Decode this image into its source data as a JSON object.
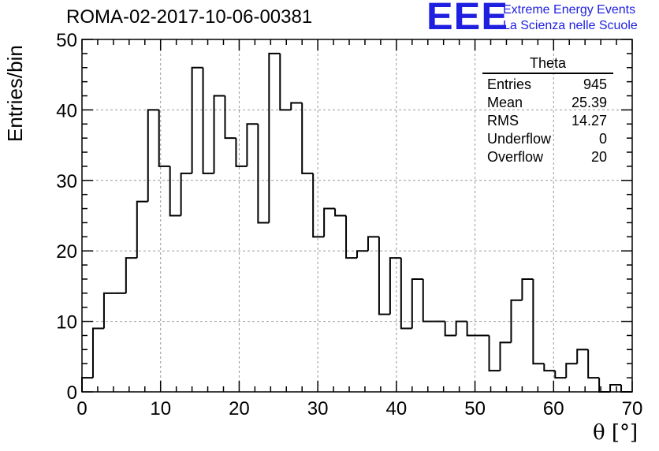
{
  "title": "ROMA-02-2017-10-06-00381",
  "logo": {
    "mark": "EEE",
    "line1": "Extreme Energy Events",
    "line2": "La Scienza nelle Scuole",
    "color": "#1f1fe0"
  },
  "stats": {
    "title": "Theta",
    "rows": [
      {
        "label": "Entries",
        "value": "945"
      },
      {
        "label": "Mean",
        "value": "25.39"
      },
      {
        "label": "RMS",
        "value": "14.27"
      },
      {
        "label": "Underflow",
        "value": "0"
      },
      {
        "label": "Overflow",
        "value": "20"
      }
    ]
  },
  "chart_data": {
    "type": "histogram",
    "xlabel": "θ [°]",
    "ylabel": "Entries/bin",
    "xlim": [
      0,
      70
    ],
    "ylim": [
      0,
      50
    ],
    "x_ticks": [
      0,
      10,
      20,
      30,
      40,
      50,
      60,
      70
    ],
    "y_ticks": [
      0,
      10,
      20,
      30,
      40,
      50
    ],
    "grid": true,
    "bin_width": 1.4,
    "bin_edges_start": 0,
    "values": [
      2,
      9,
      14,
      14,
      19,
      27,
      40,
      32,
      25,
      31,
      46,
      31,
      42,
      36,
      32,
      38,
      24,
      48,
      40,
      41,
      31,
      22,
      26,
      25,
      19,
      20,
      22,
      11,
      19,
      9,
      16,
      10,
      10,
      8,
      10,
      8,
      8,
      3,
      7,
      13,
      16,
      4,
      3,
      2,
      4,
      6,
      2,
      0,
      1,
      0
    ]
  }
}
